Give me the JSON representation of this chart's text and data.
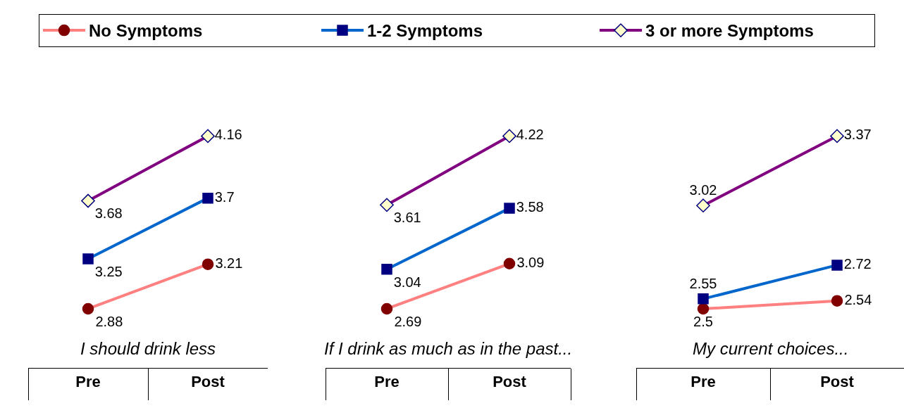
{
  "chart_data": [
    {
      "type": "line",
      "title": "I should drink less",
      "categories": [
        "Pre",
        "Post"
      ],
      "tick_labels": "x",
      "data_labels": true,
      "legend": "top",
      "grid": false,
      "line_style": "solid",
      "series": [
        {
          "name": "No Symptoms",
          "color": "#ff8080",
          "marker": "circle",
          "values": [
            2.88,
            3.21
          ]
        },
        {
          "name": "1-2 Symptoms",
          "color": "#0066cc",
          "marker": "square",
          "values": [
            3.25,
            3.7
          ]
        },
        {
          "name": "3 or more Symptoms",
          "color": "#800080",
          "marker": "diamond",
          "values": [
            3.68,
            4.16
          ]
        }
      ]
    },
    {
      "type": "line",
      "title": "If I drink as much as in the past...",
      "categories": [
        "Pre",
        "Post"
      ],
      "tick_labels": "x",
      "data_labels": true,
      "grid": false,
      "line_style": "solid",
      "series": [
        {
          "color": "#ff8080",
          "marker": "circle",
          "values": [
            2.69,
            3.09
          ]
        },
        {
          "color": "#0066cc",
          "marker": "square",
          "values": [
            3.04,
            3.58
          ]
        },
        {
          "color": "#800080",
          "marker": "diamond",
          "values": [
            3.61,
            4.22
          ]
        }
      ]
    },
    {
      "type": "line",
      "title": "My current choices...",
      "categories": [
        "Pre",
        "Post"
      ],
      "tick_labels": "x",
      "data_labels": true,
      "grid": false,
      "line_style": "solid",
      "series": [
        {
          "color": "#ff8080",
          "marker": "circle",
          "values": [
            2.5,
            2.54
          ]
        },
        {
          "color": "#0066cc",
          "marker": "square",
          "values": [
            2.55,
            2.72
          ]
        },
        {
          "color": "#800080",
          "marker": "diamond",
          "values": [
            3.02,
            3.37
          ]
        }
      ]
    }
  ]
}
